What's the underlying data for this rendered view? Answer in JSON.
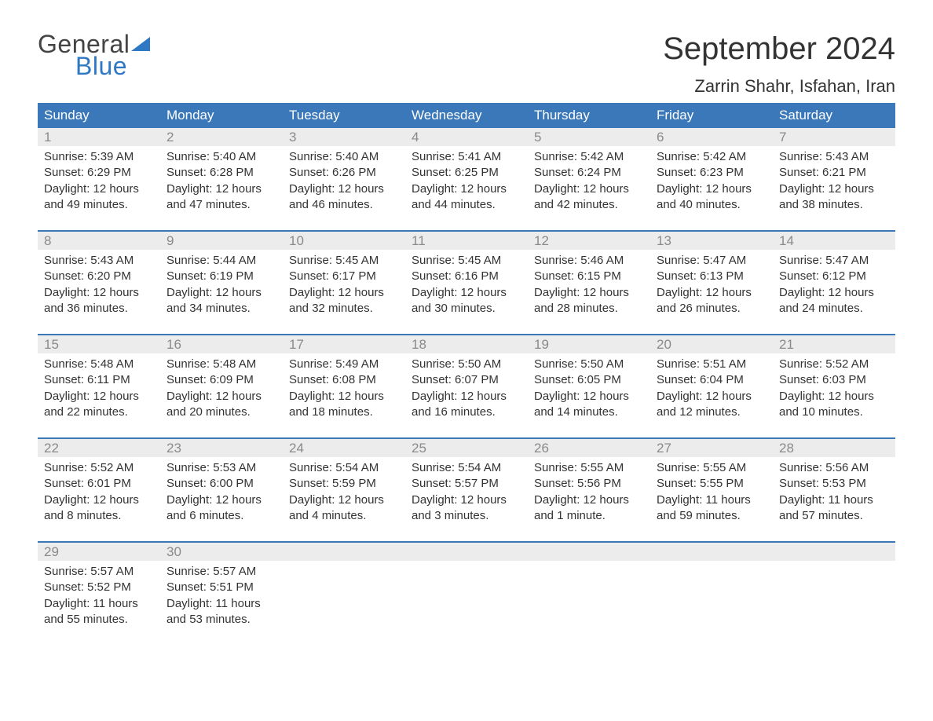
{
  "logo": {
    "word1": "General",
    "word2": "Blue"
  },
  "header": {
    "month_title": "September 2024",
    "location": "Zarrin Shahr, Isfahan, Iran"
  },
  "colors": {
    "header_bg": "#3a78b9",
    "header_text": "#ffffff",
    "daynum_bg": "#ececec",
    "daynum_text": "#8a8a8a",
    "body_text": "#333333",
    "logo_accent": "#2f78c4",
    "week_divider": "#3a78b9",
    "page_bg": "#ffffff"
  },
  "day_names": [
    "Sunday",
    "Monday",
    "Tuesday",
    "Wednesday",
    "Thursday",
    "Friday",
    "Saturday"
  ],
  "weeks": [
    [
      {
        "n": "1",
        "sunrise": "Sunrise: 5:39 AM",
        "sunset": "Sunset: 6:29 PM",
        "daylight": "Daylight: 12 hours and 49 minutes."
      },
      {
        "n": "2",
        "sunrise": "Sunrise: 5:40 AM",
        "sunset": "Sunset: 6:28 PM",
        "daylight": "Daylight: 12 hours and 47 minutes."
      },
      {
        "n": "3",
        "sunrise": "Sunrise: 5:40 AM",
        "sunset": "Sunset: 6:26 PM",
        "daylight": "Daylight: 12 hours and 46 minutes."
      },
      {
        "n": "4",
        "sunrise": "Sunrise: 5:41 AM",
        "sunset": "Sunset: 6:25 PM",
        "daylight": "Daylight: 12 hours and 44 minutes."
      },
      {
        "n": "5",
        "sunrise": "Sunrise: 5:42 AM",
        "sunset": "Sunset: 6:24 PM",
        "daylight": "Daylight: 12 hours and 42 minutes."
      },
      {
        "n": "6",
        "sunrise": "Sunrise: 5:42 AM",
        "sunset": "Sunset: 6:23 PM",
        "daylight": "Daylight: 12 hours and 40 minutes."
      },
      {
        "n": "7",
        "sunrise": "Sunrise: 5:43 AM",
        "sunset": "Sunset: 6:21 PM",
        "daylight": "Daylight: 12 hours and 38 minutes."
      }
    ],
    [
      {
        "n": "8",
        "sunrise": "Sunrise: 5:43 AM",
        "sunset": "Sunset: 6:20 PM",
        "daylight": "Daylight: 12 hours and 36 minutes."
      },
      {
        "n": "9",
        "sunrise": "Sunrise: 5:44 AM",
        "sunset": "Sunset: 6:19 PM",
        "daylight": "Daylight: 12 hours and 34 minutes."
      },
      {
        "n": "10",
        "sunrise": "Sunrise: 5:45 AM",
        "sunset": "Sunset: 6:17 PM",
        "daylight": "Daylight: 12 hours and 32 minutes."
      },
      {
        "n": "11",
        "sunrise": "Sunrise: 5:45 AM",
        "sunset": "Sunset: 6:16 PM",
        "daylight": "Daylight: 12 hours and 30 minutes."
      },
      {
        "n": "12",
        "sunrise": "Sunrise: 5:46 AM",
        "sunset": "Sunset: 6:15 PM",
        "daylight": "Daylight: 12 hours and 28 minutes."
      },
      {
        "n": "13",
        "sunrise": "Sunrise: 5:47 AM",
        "sunset": "Sunset: 6:13 PM",
        "daylight": "Daylight: 12 hours and 26 minutes."
      },
      {
        "n": "14",
        "sunrise": "Sunrise: 5:47 AM",
        "sunset": "Sunset: 6:12 PM",
        "daylight": "Daylight: 12 hours and 24 minutes."
      }
    ],
    [
      {
        "n": "15",
        "sunrise": "Sunrise: 5:48 AM",
        "sunset": "Sunset: 6:11 PM",
        "daylight": "Daylight: 12 hours and 22 minutes."
      },
      {
        "n": "16",
        "sunrise": "Sunrise: 5:48 AM",
        "sunset": "Sunset: 6:09 PM",
        "daylight": "Daylight: 12 hours and 20 minutes."
      },
      {
        "n": "17",
        "sunrise": "Sunrise: 5:49 AM",
        "sunset": "Sunset: 6:08 PM",
        "daylight": "Daylight: 12 hours and 18 minutes."
      },
      {
        "n": "18",
        "sunrise": "Sunrise: 5:50 AM",
        "sunset": "Sunset: 6:07 PM",
        "daylight": "Daylight: 12 hours and 16 minutes."
      },
      {
        "n": "19",
        "sunrise": "Sunrise: 5:50 AM",
        "sunset": "Sunset: 6:05 PM",
        "daylight": "Daylight: 12 hours and 14 minutes."
      },
      {
        "n": "20",
        "sunrise": "Sunrise: 5:51 AM",
        "sunset": "Sunset: 6:04 PM",
        "daylight": "Daylight: 12 hours and 12 minutes."
      },
      {
        "n": "21",
        "sunrise": "Sunrise: 5:52 AM",
        "sunset": "Sunset: 6:03 PM",
        "daylight": "Daylight: 12 hours and 10 minutes."
      }
    ],
    [
      {
        "n": "22",
        "sunrise": "Sunrise: 5:52 AM",
        "sunset": "Sunset: 6:01 PM",
        "daylight": "Daylight: 12 hours and 8 minutes."
      },
      {
        "n": "23",
        "sunrise": "Sunrise: 5:53 AM",
        "sunset": "Sunset: 6:00 PM",
        "daylight": "Daylight: 12 hours and 6 minutes."
      },
      {
        "n": "24",
        "sunrise": "Sunrise: 5:54 AM",
        "sunset": "Sunset: 5:59 PM",
        "daylight": "Daylight: 12 hours and 4 minutes."
      },
      {
        "n": "25",
        "sunrise": "Sunrise: 5:54 AM",
        "sunset": "Sunset: 5:57 PM",
        "daylight": "Daylight: 12 hours and 3 minutes."
      },
      {
        "n": "26",
        "sunrise": "Sunrise: 5:55 AM",
        "sunset": "Sunset: 5:56 PM",
        "daylight": "Daylight: 12 hours and 1 minute."
      },
      {
        "n": "27",
        "sunrise": "Sunrise: 5:55 AM",
        "sunset": "Sunset: 5:55 PM",
        "daylight": "Daylight: 11 hours and 59 minutes."
      },
      {
        "n": "28",
        "sunrise": "Sunrise: 5:56 AM",
        "sunset": "Sunset: 5:53 PM",
        "daylight": "Daylight: 11 hours and 57 minutes."
      }
    ],
    [
      {
        "n": "29",
        "sunrise": "Sunrise: 5:57 AM",
        "sunset": "Sunset: 5:52 PM",
        "daylight": "Daylight: 11 hours and 55 minutes."
      },
      {
        "n": "30",
        "sunrise": "Sunrise: 5:57 AM",
        "sunset": "Sunset: 5:51 PM",
        "daylight": "Daylight: 11 hours and 53 minutes."
      },
      null,
      null,
      null,
      null,
      null
    ]
  ]
}
